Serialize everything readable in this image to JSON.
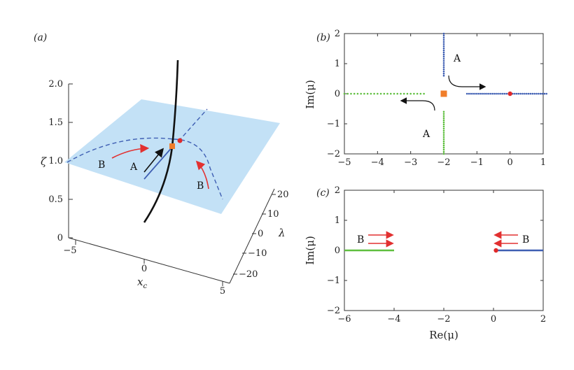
{
  "panels": {
    "a": "(a)",
    "b": "(b)",
    "c": "(c)"
  },
  "colors": {
    "plane": "#b9dcf5",
    "blue_curve": "#3f5fb3",
    "green": "#5fbf3f",
    "red": "#e02a2a",
    "orange": "#f07d2a",
    "arrow_red": "#e23030",
    "black": "#111111"
  },
  "chart_data": [
    {
      "panel": "(a)",
      "type": "surface3d",
      "zlabel": "ζ",
      "xlabel": "x",
      "xlabel_sub": "c",
      "ylabel": "λ",
      "z_ticks": [
        "0",
        "0.5",
        "1.0",
        "1.5",
        "2.0"
      ],
      "x_ticks": [
        "−5",
        "0",
        "5"
      ],
      "y_ticks": [
        "20",
        "10",
        "0",
        "−10",
        "−20"
      ],
      "annotations": [
        "B",
        "A",
        "B"
      ]
    },
    {
      "panel": "(b)",
      "type": "scatter",
      "xlabel": "",
      "ylabel": "Im(μ)",
      "xlim": [
        -5,
        1
      ],
      "ylim": [
        -2,
        2
      ],
      "x_ticks": [
        "−5",
        "−4",
        "−3",
        "−2",
        "−1",
        "0",
        "1"
      ],
      "y_ticks": [
        "−2",
        "−1",
        "0",
        "1",
        "2"
      ],
      "series": [
        {
          "x_range": [
            -1.3,
            1.1
          ],
          "y": 0,
          "color": "blue"
        },
        {
          "x": -2,
          "y_range": [
            0.6,
            2.0
          ],
          "color": "blue"
        },
        {
          "x_range": [
            -5,
            -2.6
          ],
          "y": 0,
          "color": "green"
        },
        {
          "x": -2,
          "y_range": [
            -2.0,
            -0.6
          ],
          "color": "green"
        }
      ],
      "markers": [
        {
          "x": -2,
          "y": 0,
          "shape": "square",
          "color": "orange"
        },
        {
          "x": 0,
          "y": 0,
          "shape": "circle",
          "color": "red"
        }
      ],
      "annotations": [
        "A",
        "A"
      ]
    },
    {
      "panel": "(c)",
      "type": "line",
      "xlabel": "Re(μ)",
      "ylabel": "Im(μ)",
      "xlim": [
        -6,
        2
      ],
      "ylim": [
        -2,
        2
      ],
      "x_ticks": [
        "−6",
        "−4",
        "−2",
        "0",
        "2"
      ],
      "y_ticks": [
        "−2",
        "−1",
        "0",
        "1",
        "2"
      ],
      "series": [
        {
          "x_range": [
            -6,
            -4
          ],
          "y": 0,
          "color": "green"
        },
        {
          "x_range": [
            0.1,
            2
          ],
          "y": 0,
          "color": "blue"
        }
      ],
      "markers": [
        {
          "x": 0.1,
          "y": 0,
          "shape": "circle",
          "color": "red"
        }
      ],
      "annotations": [
        "B",
        "B"
      ]
    }
  ]
}
